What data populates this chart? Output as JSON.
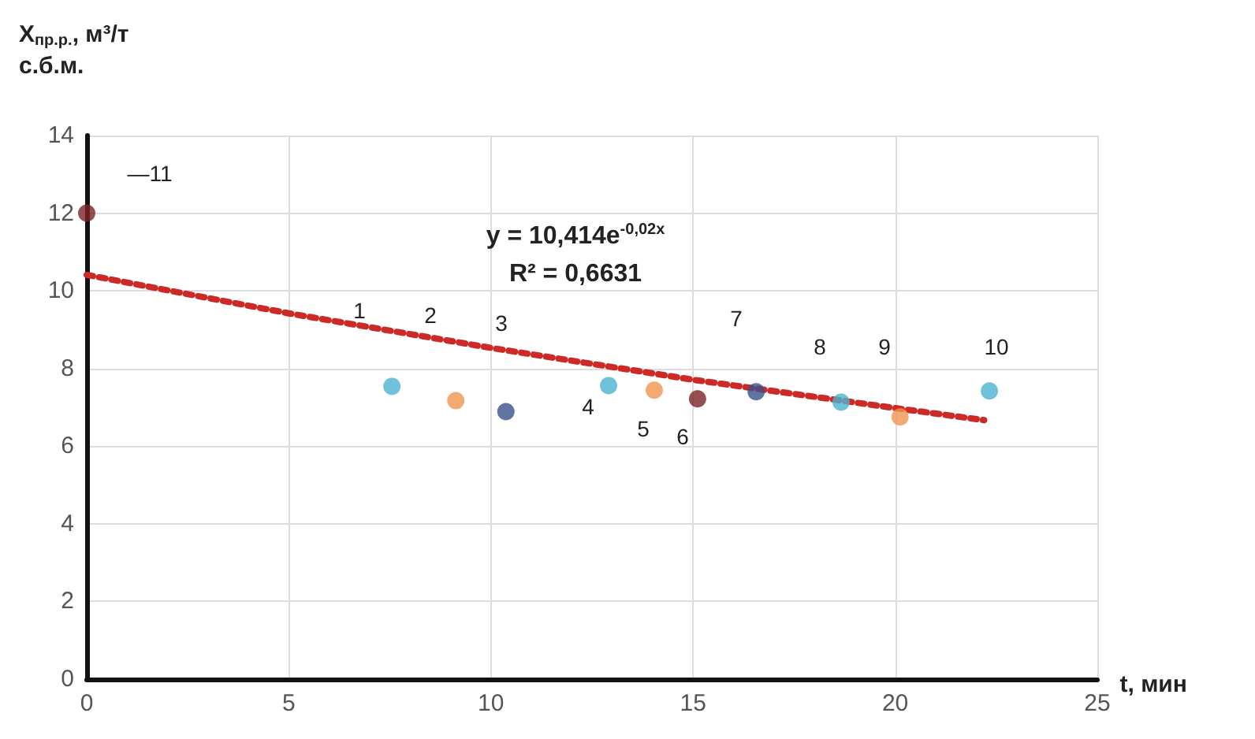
{
  "chart_data": {
    "type": "scatter",
    "xlabel": "t, мин",
    "ylabel": "X$_{пр.р.}$, м³/т\nс.б.м.",
    "xlim": [
      0,
      25
    ],
    "xticks": [
      0,
      5,
      10,
      15,
      20,
      25
    ],
    "ylim": [
      0,
      14
    ],
    "yticks": [
      0,
      2,
      4,
      6,
      8,
      10,
      12,
      14
    ],
    "grid": true,
    "marker": "circle",
    "series": [
      {
        "x": [
          7.55,
          9.13,
          10.37,
          12.91,
          14.04,
          15.11,
          16.56,
          18.66,
          20.12,
          22.33,
          0
        ],
        "values": [
          7.54,
          7.17,
          6.89,
          7.56,
          7.44,
          7.22,
          7.4,
          7.13,
          6.75,
          7.42,
          12
        ],
        "colors": [
          "#4bb3d0",
          "#f0954f",
          "#3a5189",
          "#4bb3d0",
          "#f0954f",
          "#7b2227",
          "#3a5189",
          "#4bb3d0",
          "#f0954f",
          "#4bb3d0",
          "#7b2227"
        ]
      },
      {
        "type": "line",
        "x": [
          0,
          5,
          10,
          15,
          20,
          22.2
        ],
        "values": [
          10.41,
          9.42,
          8.53,
          7.71,
          6.98,
          6.67
        ],
        "color": "#cc2a26",
        "line_style": "dotted",
        "marker": "none"
      }
    ],
    "annotations": [
      "y = 10,414e$^{-0,02x}$",
      "R² = 0,6631",
      "1",
      "2",
      "3",
      "4",
      "5",
      "6",
      "7",
      "8",
      "9",
      "10",
      "—11"
    ]
  }
}
